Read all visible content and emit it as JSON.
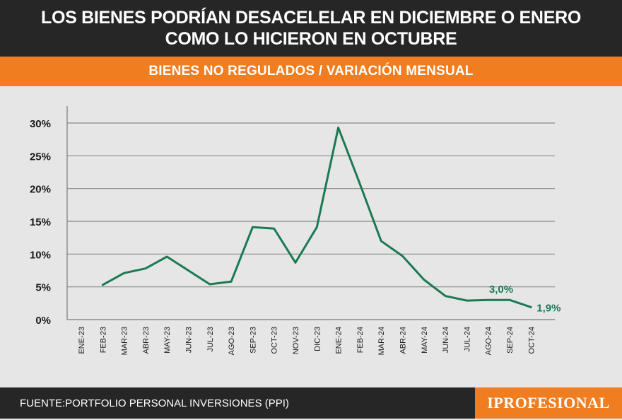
{
  "header": {
    "title_line1": "LOS BIENES PODRÍAN DESACELELAR EN DICIEMBRE O ENERO",
    "title_line2": "COMO LO HICIERON EN OCTUBRE"
  },
  "subheader": {
    "label": "BIENES NO REGULADOS / VARIACIÓN MENSUAL"
  },
  "footer": {
    "source": "FUENTE:PORTFOLIO PERSONAL INVERSIONES (PPI)",
    "logo": "IPROFESIONAL"
  },
  "colors": {
    "header_bg": "#262626",
    "accent": "#f07d1f",
    "line": "#1b7a54",
    "plot_bg": "#e6e6e6"
  },
  "chart_data": {
    "type": "line",
    "title": "BIENES NO REGULADOS / VARIACIÓN MENSUAL",
    "xlabel": "",
    "ylabel": "",
    "ylim": [
      0,
      30
    ],
    "grid": true,
    "yticks": [
      "0%",
      "5%",
      "10%",
      "15%",
      "20%",
      "25%",
      "30%"
    ],
    "categories": [
      "ENE-23",
      "FEB-23",
      "MAR-23",
      "ABR-23",
      "MAY-23",
      "JUN-23",
      "JUL-23",
      "AGO-23",
      "SEP-23",
      "OCT-23",
      "NOV-23",
      "DIC-23",
      "ENE-24",
      "FEB-24",
      "MAR-24",
      "ABR-24",
      "MAY-24",
      "JUN-24",
      "JUL-24",
      "AGO-24",
      "SEP-24",
      "OCT-24"
    ],
    "series": [
      {
        "values": [
          null,
          5.3,
          7.1,
          7.8,
          9.6,
          7.5,
          5.4,
          5.8,
          14.1,
          13.9,
          8.7,
          14.1,
          29.3,
          20.8,
          12.0,
          9.7,
          6.1,
          3.6,
          2.9,
          3.0,
          3.0,
          1.9
        ]
      }
    ],
    "annotations": [
      {
        "category": "SEP-24",
        "text": "3,0%"
      },
      {
        "category": "OCT-24",
        "text": "1,9%"
      }
    ]
  }
}
